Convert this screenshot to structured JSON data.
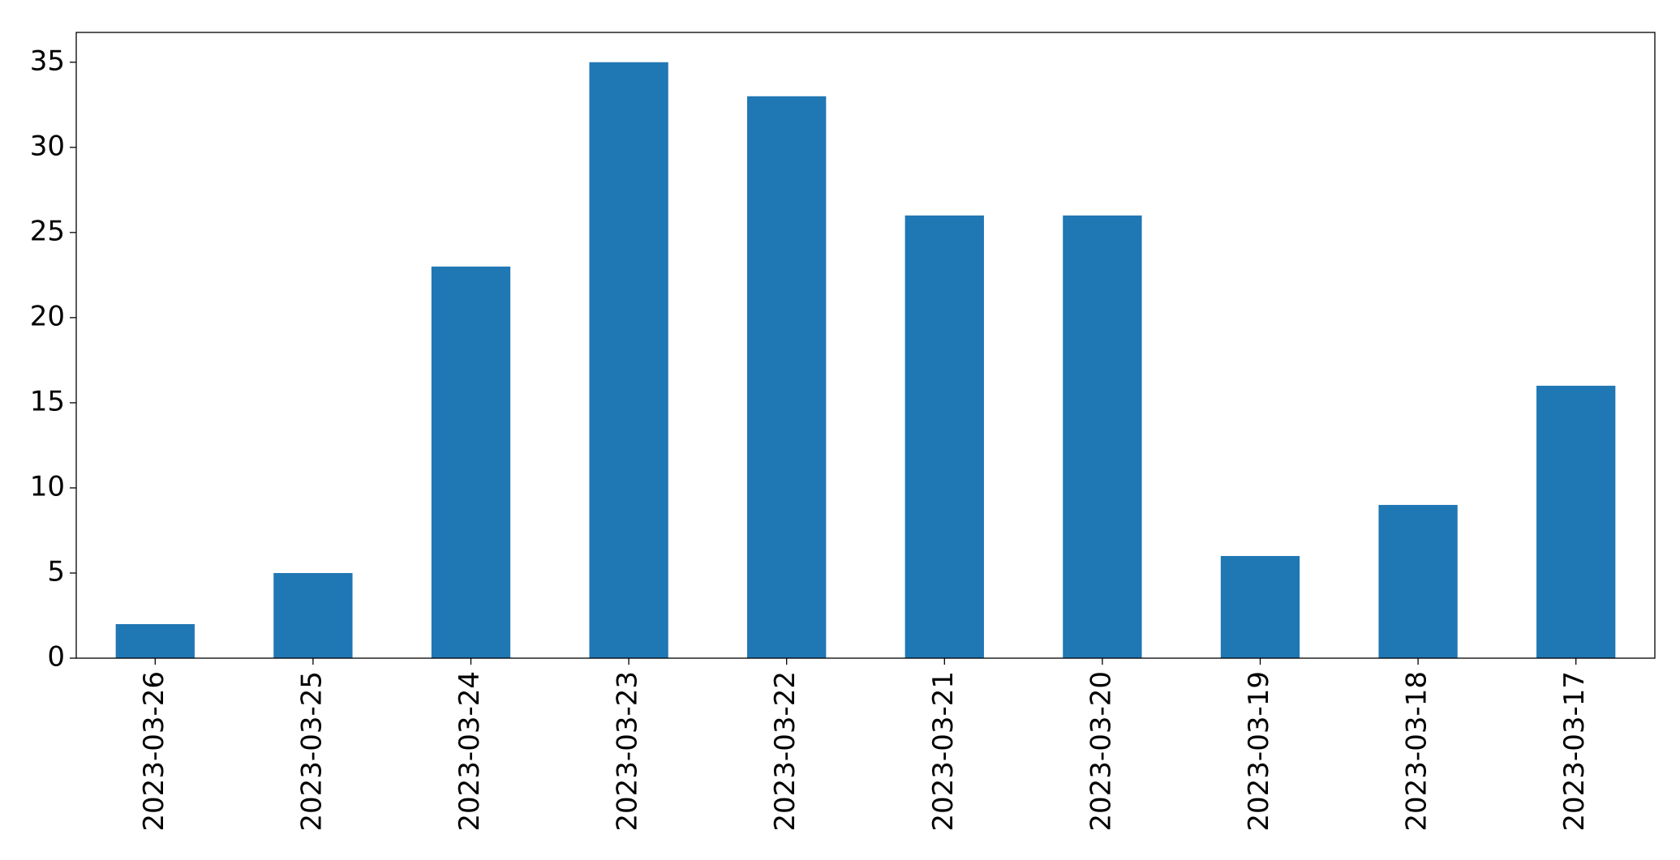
{
  "chart_data": {
    "type": "bar",
    "categories": [
      "2023-03-26",
      "2023-03-25",
      "2023-03-24",
      "2023-03-23",
      "2023-03-22",
      "2023-03-21",
      "2023-03-20",
      "2023-03-19",
      "2023-03-18",
      "2023-03-17"
    ],
    "values": [
      2,
      5,
      23,
      35,
      33,
      26,
      26,
      6,
      9,
      16
    ],
    "color": "#1f77b4",
    "ylim": [
      0,
      36.75
    ],
    "yticks": [
      0,
      5,
      10,
      15,
      20,
      25,
      30,
      35
    ],
    "grid": false
  }
}
